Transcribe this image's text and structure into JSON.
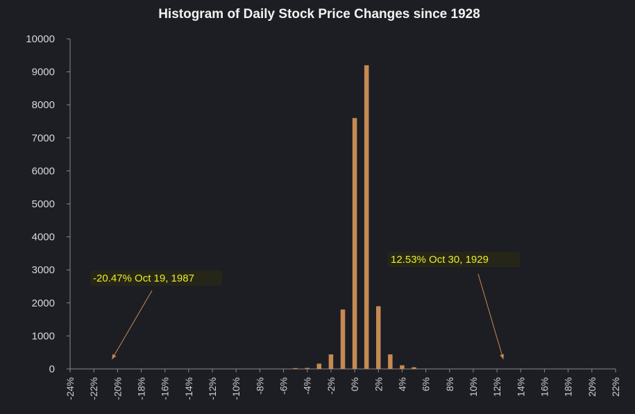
{
  "chart_data": {
    "type": "bar",
    "title": "Histogram of Daily Stock Price Changes  since 1928",
    "xlabel": "",
    "ylabel": "",
    "ylim": [
      0,
      10000
    ],
    "y_ticks": [
      "0",
      "1000",
      "2000",
      "3000",
      "4000",
      "5000",
      "6000",
      "7000",
      "8000",
      "9000",
      "10000"
    ],
    "x_tick_labels": [
      "-24%",
      "-22%",
      "-20%",
      "-18%",
      "-16%",
      "-14%",
      "-12%",
      "-10%",
      "-8%",
      "-6%",
      "-4%",
      "-2%",
      "0%",
      "2%",
      "4%",
      "6%",
      "8%",
      "10%",
      "12%",
      "14%",
      "16%",
      "18%",
      "20%",
      "22%"
    ],
    "x_range": [
      -24,
      22
    ],
    "bins": [
      {
        "x": -5,
        "value": 25
      },
      {
        "x": -4,
        "value": 30
      },
      {
        "x": -3,
        "value": 160
      },
      {
        "x": -2,
        "value": 440
      },
      {
        "x": -1,
        "value": 1800
      },
      {
        "x": 0,
        "value": 7600
      },
      {
        "x": 1,
        "value": 9200
      },
      {
        "x": 2,
        "value": 1900
      },
      {
        "x": 3,
        "value": 440
      },
      {
        "x": 4,
        "value": 110
      },
      {
        "x": 5,
        "value": 50
      }
    ],
    "annotations": [
      {
        "text": "-20.47% Oct 19, 1987",
        "point_x": -20.47
      },
      {
        "text": "12.53% Oct 30, 1929",
        "point_x": 12.53
      }
    ],
    "grid": false,
    "legend": "none"
  },
  "colors": {
    "background": "#1d1e24",
    "bar": "#c58a52",
    "annotation_text": "#ecec2a",
    "axis": "#8a8a8a",
    "text": "#d8d8d8"
  }
}
